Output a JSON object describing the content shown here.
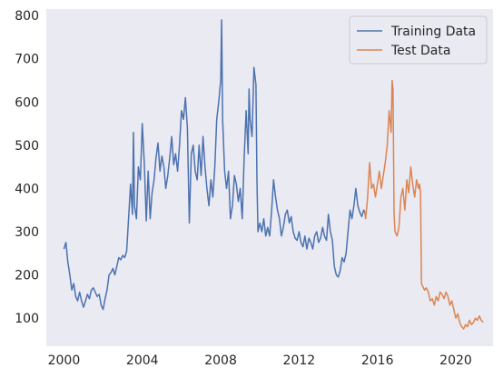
{
  "chart_data": {
    "type": "line",
    "title": "",
    "xlabel": "",
    "ylabel": "",
    "xlim": [
      1999.1,
      2021.9
    ],
    "ylim": [
      35,
      815
    ],
    "x_ticks": [
      2000,
      2004,
      2008,
      2012,
      2016,
      2020
    ],
    "y_ticks": [
      100,
      200,
      300,
      400,
      500,
      600,
      700,
      800
    ],
    "grid": false,
    "background": "#EAEAF2",
    "legend": {
      "placement": "top-right"
    },
    "series": [
      {
        "name": "Training Data",
        "color": "#4C72B0",
        "points": [
          [
            2000.0,
            260
          ],
          [
            2000.1,
            275
          ],
          [
            2000.2,
            230
          ],
          [
            2000.3,
            200
          ],
          [
            2000.4,
            165
          ],
          [
            2000.5,
            180
          ],
          [
            2000.6,
            150
          ],
          [
            2000.7,
            140
          ],
          [
            2000.8,
            160
          ],
          [
            2000.9,
            140
          ],
          [
            2001.0,
            125
          ],
          [
            2001.1,
            140
          ],
          [
            2001.2,
            155
          ],
          [
            2001.3,
            145
          ],
          [
            2001.4,
            165
          ],
          [
            2001.5,
            170
          ],
          [
            2001.6,
            160
          ],
          [
            2001.7,
            150
          ],
          [
            2001.8,
            155
          ],
          [
            2001.9,
            130
          ],
          [
            2002.0,
            120
          ],
          [
            2002.1,
            145
          ],
          [
            2002.2,
            165
          ],
          [
            2002.3,
            200
          ],
          [
            2002.4,
            205
          ],
          [
            2002.5,
            215
          ],
          [
            2002.6,
            200
          ],
          [
            2002.7,
            220
          ],
          [
            2002.8,
            240
          ],
          [
            2002.9,
            235
          ],
          [
            2003.0,
            245
          ],
          [
            2003.1,
            240
          ],
          [
            2003.2,
            255
          ],
          [
            2003.3,
            330
          ],
          [
            2003.4,
            410
          ],
          [
            2003.5,
            340
          ],
          [
            2003.55,
            530
          ],
          [
            2003.6,
            360
          ],
          [
            2003.7,
            330
          ],
          [
            2003.8,
            450
          ],
          [
            2003.9,
            420
          ],
          [
            2004.0,
            550
          ],
          [
            2004.1,
            460
          ],
          [
            2004.2,
            325
          ],
          [
            2004.3,
            440
          ],
          [
            2004.4,
            330
          ],
          [
            2004.5,
            390
          ],
          [
            2004.6,
            420
          ],
          [
            2004.7,
            470
          ],
          [
            2004.8,
            505
          ],
          [
            2004.9,
            440
          ],
          [
            2005.0,
            475
          ],
          [
            2005.1,
            450
          ],
          [
            2005.2,
            400
          ],
          [
            2005.3,
            430
          ],
          [
            2005.4,
            470
          ],
          [
            2005.5,
            520
          ],
          [
            2005.6,
            455
          ],
          [
            2005.7,
            480
          ],
          [
            2005.8,
            440
          ],
          [
            2005.9,
            500
          ],
          [
            2006.0,
            580
          ],
          [
            2006.1,
            560
          ],
          [
            2006.2,
            610
          ],
          [
            2006.3,
            540
          ],
          [
            2006.4,
            320
          ],
          [
            2006.5,
            480
          ],
          [
            2006.6,
            500
          ],
          [
            2006.7,
            440
          ],
          [
            2006.8,
            420
          ],
          [
            2006.9,
            500
          ],
          [
            2007.0,
            430
          ],
          [
            2007.1,
            520
          ],
          [
            2007.2,
            450
          ],
          [
            2007.3,
            400
          ],
          [
            2007.4,
            360
          ],
          [
            2007.5,
            420
          ],
          [
            2007.6,
            380
          ],
          [
            2007.7,
            450
          ],
          [
            2007.8,
            560
          ],
          [
            2007.9,
            600
          ],
          [
            2008.0,
            650
          ],
          [
            2008.05,
            790
          ],
          [
            2008.1,
            560
          ],
          [
            2008.2,
            440
          ],
          [
            2008.3,
            400
          ],
          [
            2008.4,
            440
          ],
          [
            2008.5,
            330
          ],
          [
            2008.6,
            360
          ],
          [
            2008.7,
            430
          ],
          [
            2008.8,
            410
          ],
          [
            2008.9,
            370
          ],
          [
            2009.0,
            400
          ],
          [
            2009.1,
            330
          ],
          [
            2009.2,
            470
          ],
          [
            2009.3,
            580
          ],
          [
            2009.4,
            480
          ],
          [
            2009.45,
            630
          ],
          [
            2009.5,
            560
          ],
          [
            2009.6,
            520
          ],
          [
            2009.7,
            680
          ],
          [
            2009.8,
            640
          ],
          [
            2009.85,
            420
          ],
          [
            2009.9,
            300
          ],
          [
            2010.0,
            320
          ],
          [
            2010.1,
            300
          ],
          [
            2010.2,
            330
          ],
          [
            2010.3,
            290
          ],
          [
            2010.4,
            310
          ],
          [
            2010.5,
            290
          ],
          [
            2010.6,
            350
          ],
          [
            2010.7,
            420
          ],
          [
            2010.8,
            380
          ],
          [
            2010.9,
            350
          ],
          [
            2011.0,
            330
          ],
          [
            2011.1,
            290
          ],
          [
            2011.2,
            310
          ],
          [
            2011.3,
            340
          ],
          [
            2011.4,
            350
          ],
          [
            2011.5,
            320
          ],
          [
            2011.6,
            335
          ],
          [
            2011.7,
            300
          ],
          [
            2011.8,
            285
          ],
          [
            2011.9,
            280
          ],
          [
            2012.0,
            300
          ],
          [
            2012.1,
            275
          ],
          [
            2012.2,
            265
          ],
          [
            2012.3,
            290
          ],
          [
            2012.4,
            260
          ],
          [
            2012.5,
            285
          ],
          [
            2012.6,
            275
          ],
          [
            2012.7,
            260
          ],
          [
            2012.8,
            290
          ],
          [
            2012.9,
            300
          ],
          [
            2013.0,
            275
          ],
          [
            2013.1,
            285
          ],
          [
            2013.2,
            310
          ],
          [
            2013.3,
            290
          ],
          [
            2013.4,
            280
          ],
          [
            2013.5,
            340
          ],
          [
            2013.6,
            300
          ],
          [
            2013.7,
            280
          ],
          [
            2013.8,
            220
          ],
          [
            2013.9,
            200
          ],
          [
            2014.0,
            195
          ],
          [
            2014.1,
            210
          ],
          [
            2014.2,
            240
          ],
          [
            2014.3,
            230
          ],
          [
            2014.4,
            250
          ],
          [
            2014.5,
            300
          ],
          [
            2014.6,
            350
          ],
          [
            2014.7,
            330
          ],
          [
            2014.8,
            360
          ],
          [
            2014.9,
            400
          ],
          [
            2015.0,
            360
          ],
          [
            2015.1,
            345
          ],
          [
            2015.2,
            335
          ],
          [
            2015.3,
            350
          ],
          [
            2015.35,
            345
          ]
        ]
      },
      {
        "name": "Test Data",
        "color": "#DD8452",
        "points": [
          [
            2015.35,
            345
          ],
          [
            2015.4,
            330
          ],
          [
            2015.5,
            380
          ],
          [
            2015.6,
            460
          ],
          [
            2015.7,
            400
          ],
          [
            2015.8,
            410
          ],
          [
            2015.9,
            380
          ],
          [
            2016.0,
            410
          ],
          [
            2016.1,
            440
          ],
          [
            2016.2,
            400
          ],
          [
            2016.3,
            430
          ],
          [
            2016.4,
            460
          ],
          [
            2016.5,
            500
          ],
          [
            2016.6,
            580
          ],
          [
            2016.7,
            530
          ],
          [
            2016.75,
            650
          ],
          [
            2016.8,
            630
          ],
          [
            2016.85,
            340
          ],
          [
            2016.9,
            300
          ],
          [
            2017.0,
            290
          ],
          [
            2017.1,
            310
          ],
          [
            2017.2,
            380
          ],
          [
            2017.3,
            400
          ],
          [
            2017.4,
            350
          ],
          [
            2017.5,
            420
          ],
          [
            2017.6,
            390
          ],
          [
            2017.7,
            450
          ],
          [
            2017.8,
            410
          ],
          [
            2017.9,
            380
          ],
          [
            2018.0,
            420
          ],
          [
            2018.1,
            400
          ],
          [
            2018.15,
            410
          ],
          [
            2018.2,
            390
          ],
          [
            2018.25,
            180
          ],
          [
            2018.3,
            175
          ],
          [
            2018.4,
            165
          ],
          [
            2018.5,
            170
          ],
          [
            2018.6,
            160
          ],
          [
            2018.7,
            140
          ],
          [
            2018.8,
            145
          ],
          [
            2018.9,
            130
          ],
          [
            2019.0,
            150
          ],
          [
            2019.1,
            140
          ],
          [
            2019.2,
            160
          ],
          [
            2019.3,
            155
          ],
          [
            2019.4,
            145
          ],
          [
            2019.5,
            160
          ],
          [
            2019.6,
            150
          ],
          [
            2019.7,
            130
          ],
          [
            2019.8,
            140
          ],
          [
            2019.9,
            120
          ],
          [
            2020.0,
            100
          ],
          [
            2020.1,
            110
          ],
          [
            2020.2,
            90
          ],
          [
            2020.3,
            80
          ],
          [
            2020.4,
            75
          ],
          [
            2020.5,
            85
          ],
          [
            2020.6,
            80
          ],
          [
            2020.7,
            95
          ],
          [
            2020.8,
            85
          ],
          [
            2020.9,
            90
          ],
          [
            2021.0,
            100
          ],
          [
            2021.1,
            95
          ],
          [
            2021.2,
            105
          ],
          [
            2021.3,
            95
          ],
          [
            2021.4,
            90
          ]
        ]
      }
    ]
  }
}
